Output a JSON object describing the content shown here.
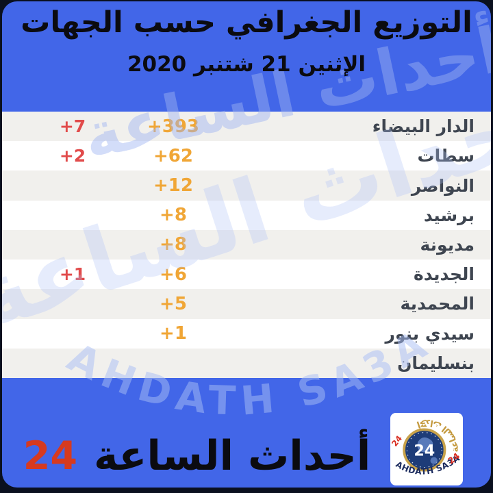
{
  "page": {
    "background_color": "#0A101F",
    "card_color": "#4266E8"
  },
  "header": {
    "title": "التوزيع الجغرافي حسب الجهات",
    "date": "الإثنين 21 شتنبر 2020",
    "text_color": "#0B0B10"
  },
  "chart_data": {
    "type": "table",
    "title": "التوزيع الجغرافي حسب الجهات",
    "subtitle": "الإثنين 21 شتنبر 2020",
    "columns": [
      "region",
      "value",
      "delta"
    ],
    "rows": [
      {
        "region": "الدار البيضاء",
        "value": "+393",
        "delta": "+7"
      },
      {
        "region": "سطات",
        "value": "+62",
        "delta": "+2"
      },
      {
        "region": "النواصر",
        "value": "+12",
        "delta": ""
      },
      {
        "region": "برشيد",
        "value": "+8",
        "delta": ""
      },
      {
        "region": "مديونة",
        "value": "+8",
        "delta": ""
      },
      {
        "region": "الجديدة",
        "value": "+6",
        "delta": "+1"
      },
      {
        "region": "المحمدية",
        "value": "+5",
        "delta": ""
      },
      {
        "region": "سيدي بنور",
        "value": "+1",
        "delta": ""
      },
      {
        "region": "بنسليمان",
        "value": "",
        "delta": ""
      }
    ],
    "value_color": "#F0A636",
    "delta_color": "#E14B4B",
    "region_color": "#3E4550",
    "row_alt_color": "#F1F0ED",
    "legend_position": "none",
    "grid": false
  },
  "footer": {
    "brand_text": "أحداث الساعة",
    "brand_number": "24",
    "brand_number_color": "#D63A20"
  },
  "logo": {
    "center_number": "24",
    "top_arc_text": "أحداث الساعة",
    "bottom_arc_text": "AHDATH SA3A",
    "left_number": "24",
    "right_number": "24",
    "gold_color": "#C8A24A",
    "navy_color": "#1E3C78",
    "red_color": "#D92F23"
  },
  "watermark": {
    "arabic_text": "أحداث الساعة",
    "latin_text": "AHDATH SA3A"
  }
}
